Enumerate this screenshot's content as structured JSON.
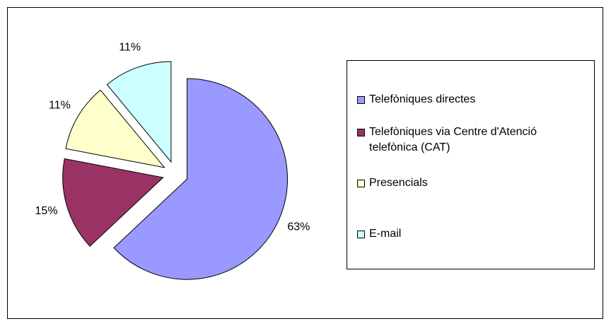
{
  "chart_data": {
    "type": "pie",
    "categories": [
      "Telefòniques directes",
      "Telefòniques via Centre d'Atenció telefònica (CAT)",
      "Presencials",
      "E-mail"
    ],
    "values": [
      63,
      15,
      11,
      11
    ],
    "value_labels": [
      "63%",
      "15%",
      "11%",
      "11%"
    ],
    "colors": [
      "#9999ff",
      "#993366",
      "#ffffcc",
      "#ccffff"
    ],
    "legend": "right"
  }
}
